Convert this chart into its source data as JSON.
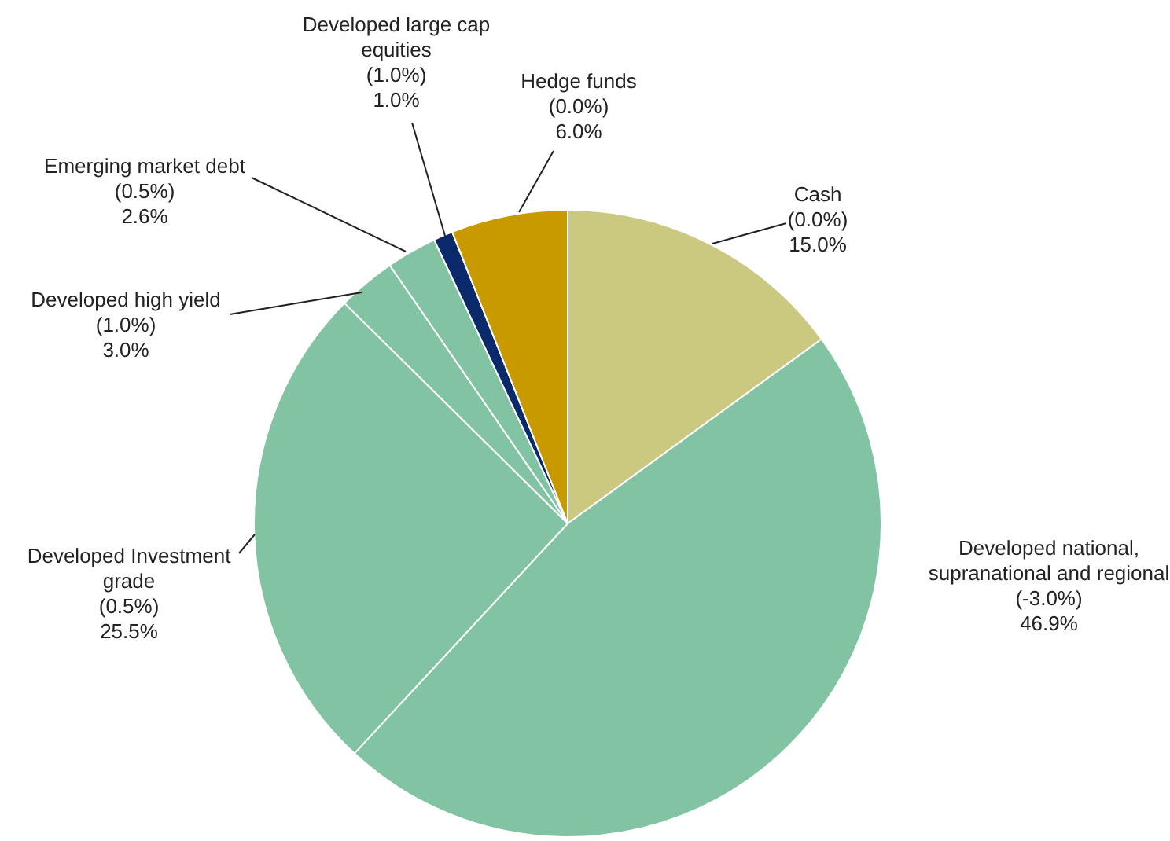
{
  "chart_data": {
    "type": "pie",
    "categories": [
      "Cash",
      "Developed national, supranational and regional",
      "Developed Investment grade",
      "Developed high yield",
      "Emerging market debt",
      "Developed large cap equities",
      "Hedge funds"
    ],
    "values": [
      15.0,
      46.9,
      25.5,
      3.0,
      2.6,
      1.0,
      6.0
    ],
    "colors": [
      "#cbc980",
      "#82c3a4",
      "#82c3a4",
      "#82c3a4",
      "#82c3a4",
      "#0b2a6b",
      "#c99a00"
    ],
    "value_labels": [
      "(0.0%)\n15.0%",
      "(-3.0%)\n46.9%",
      "(0.5%)\n25.5%",
      "(1.0%)\n3.0%",
      "(0.5%)\n2.6%",
      "(1.0%)\n1.0%",
      "(0.0%)\n6.0%"
    ],
    "legend": false
  }
}
